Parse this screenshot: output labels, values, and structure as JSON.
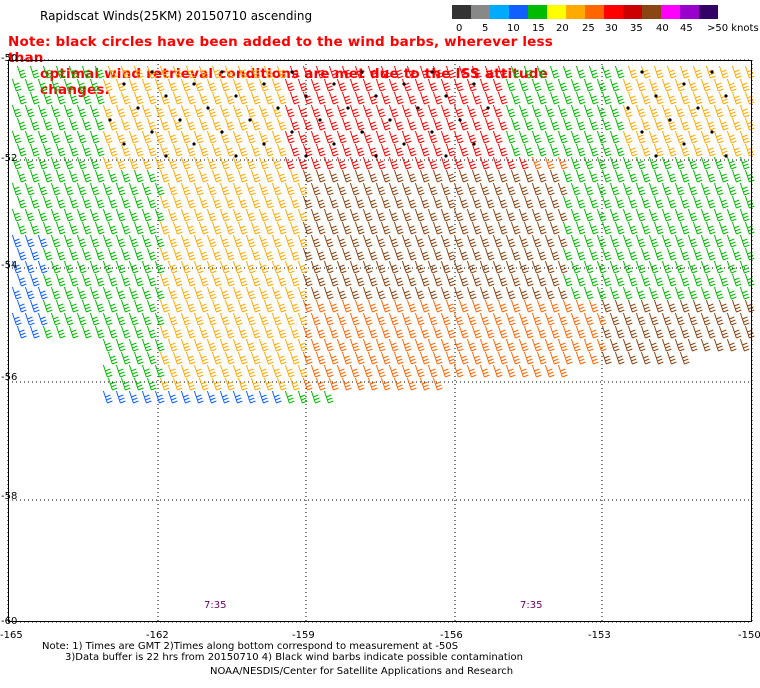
{
  "title": "Rapidscat Winds(25KM) 20150710 ascending",
  "note": {
    "line1": "Note: black circles have been added to the wind barbs, wherever less than",
    "line2": "optimal wind retrieval conditions are met due to the ISS attitude changes."
  },
  "legend": {
    "labels": [
      "0",
      "5",
      "10",
      "15",
      "20",
      "25",
      "30",
      "35",
      "40",
      "45",
      ">50 knots"
    ],
    "colors": [
      "#333333",
      "#888888",
      "#00aaff",
      "#1060ff",
      "#00bb00",
      "#ffff00",
      "#ffaa00",
      "#ff6600",
      "#ff0000",
      "#cc0000",
      "#8b4513",
      "#ff00ff",
      "#9900cc",
      "#330066"
    ]
  },
  "map": {
    "lat_labels": [
      "-50",
      "-52",
      "-54",
      "-56",
      "-58",
      "-60"
    ],
    "lon_labels": [
      "-165",
      "-162",
      "-159",
      "-156",
      "-153",
      "-150"
    ],
    "time_labels": [
      "7:35",
      "7:35"
    ]
  },
  "footer": {
    "line1": "Note: 1) Times are GMT 2)Times along bottom correspond to measurement at -50S",
    "line2": "3)Data buffer is 22 hrs from 20150710 4) Black wind barbs indicate possible contamination",
    "line3": "NOAA/NESDIS/Center for Satellite Applications and Research"
  }
}
